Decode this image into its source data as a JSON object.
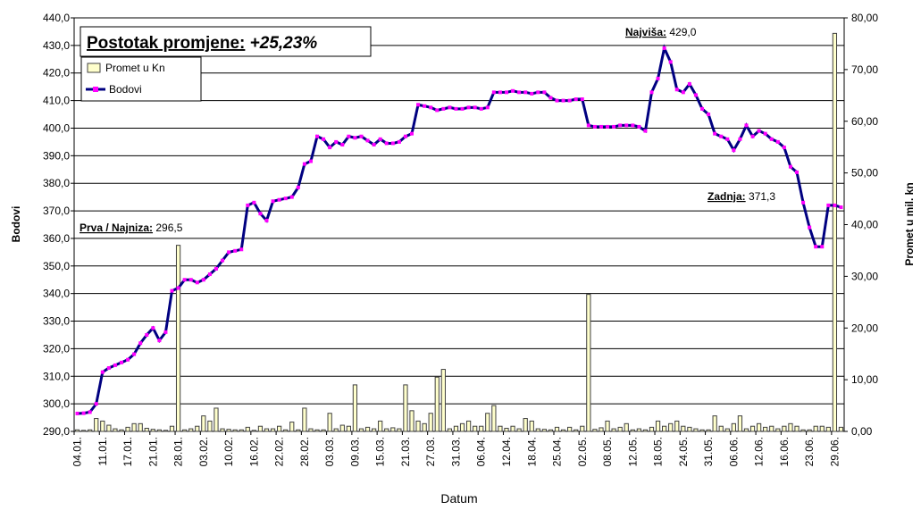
{
  "chart_data": {
    "type": "combo",
    "title": {
      "label": "Postotak promjene:",
      "value": "+25,23%"
    },
    "annotations": [
      {
        "label": "Prva / Najniza:",
        "value": "296,5"
      },
      {
        "label": "Najviša:",
        "value": "429,0"
      },
      {
        "label": "Zadnja:",
        "value": "371,3"
      }
    ],
    "y_label": "Bodovi",
    "y2_label": "Promet u mil. kn",
    "x_label": "Datum",
    "categories": [
      "04.01.",
      null,
      null,
      null,
      "11.01.",
      null,
      null,
      null,
      "17.01.",
      null,
      null,
      null,
      "21.01.",
      null,
      null,
      null,
      "28.01.",
      null,
      null,
      null,
      "03.02.",
      null,
      null,
      null,
      "10.02.",
      null,
      null,
      null,
      "16.02.",
      null,
      null,
      null,
      "22.02.",
      null,
      null,
      null,
      "28.02.",
      null,
      null,
      null,
      "03.03.",
      null,
      null,
      null,
      "09.03.",
      null,
      null,
      null,
      "15.03.",
      null,
      null,
      null,
      "21.03.",
      null,
      null,
      null,
      "27.03.",
      null,
      null,
      null,
      "31.03.",
      null,
      null,
      null,
      "06.04.",
      null,
      null,
      null,
      "12.04.",
      null,
      null,
      null,
      "18.04.",
      null,
      null,
      null,
      "25.04.",
      null,
      null,
      null,
      "02.05.",
      null,
      null,
      null,
      "08.05.",
      null,
      null,
      null,
      "12.05.",
      null,
      null,
      null,
      "18.05.",
      null,
      null,
      null,
      "24.05.",
      null,
      null,
      null,
      "31.05.",
      null,
      null,
      null,
      "06.06.",
      null,
      null,
      null,
      "12.06.",
      null,
      null,
      null,
      "16.06.",
      null,
      null,
      null,
      "23.06.",
      null,
      null,
      null,
      "29.06.",
      null
    ],
    "series": [
      {
        "name": "Promet u Kn",
        "type": "bar",
        "axis": "y2",
        "color": "#ffffcc",
        "edge_color": "#404040",
        "values": [
          0.3,
          0.2,
          0.3,
          2.5,
          2,
          1.2,
          0.5,
          0.3,
          0.8,
          1.5,
          1.5,
          0.6,
          0.4,
          0.3,
          0.2,
          1,
          36,
          0.3,
          0.5,
          1,
          3,
          2,
          4.5,
          0.5,
          0.4,
          0.3,
          0.3,
          0.8,
          0.2,
          1,
          0.5,
          0.5,
          1,
          0.3,
          1.8,
          0.3,
          4.5,
          0.5,
          0.3,
          0.3,
          3.5,
          0.5,
          1.2,
          1,
          9,
          0.5,
          0.8,
          0.5,
          2,
          0.5,
          0.7,
          0.5,
          9,
          4,
          2,
          1.5,
          3.5,
          10.5,
          12,
          0.5,
          1,
          1.5,
          2,
          1,
          1,
          3.5,
          5,
          1,
          0.6,
          1,
          0.5,
          2.5,
          2,
          0.5,
          0.4,
          0.3,
          0.8,
          0.3,
          0.8,
          0.3,
          1,
          26.5,
          0.4,
          0.7,
          2,
          0.5,
          0.8,
          1.5,
          0.3,
          0.5,
          0.3,
          0.8,
          2,
          1,
          1.5,
          2,
          1,
          0.8,
          0.5,
          0.3,
          0.3,
          3,
          1,
          0.5,
          1.5,
          3,
          0.5,
          1,
          1.5,
          0.8,
          1,
          0.5,
          1,
          1.5,
          1,
          0.3,
          0.3,
          1,
          1,
          0.8,
          77,
          0.8
        ]
      },
      {
        "name": "Bodovi",
        "type": "line",
        "axis": "y",
        "color": "#000080",
        "marker_color": "#ff00ff",
        "values": [
          296.5,
          296.6,
          297,
          300,
          311.5,
          313,
          314,
          315,
          316,
          318,
          322,
          325,
          327.5,
          323,
          326,
          341,
          342,
          345,
          345,
          344,
          345,
          347,
          349,
          352,
          355,
          355.5,
          356,
          372,
          373,
          369,
          366.5,
          373.5,
          374,
          374.5,
          375,
          378.5,
          387,
          388,
          397,
          396,
          393,
          395,
          394,
          397,
          396.5,
          397,
          395.5,
          394,
          396,
          394.5,
          394.5,
          395,
          397,
          398,
          408.5,
          408,
          407.5,
          406.5,
          407,
          407.5,
          407,
          407,
          407.5,
          407.5,
          407,
          407.5,
          413,
          413,
          413,
          413.5,
          413,
          413,
          412.5,
          413,
          413,
          411,
          410,
          410,
          410,
          410.5,
          410.5,
          401,
          400.5,
          400.5,
          400.5,
          400.5,
          401,
          401,
          401,
          400.5,
          399,
          413,
          418,
          429,
          424,
          414,
          413,
          416,
          412,
          407,
          405,
          398,
          397,
          396,
          392,
          396,
          401,
          397,
          399,
          398,
          396,
          395,
          393,
          386,
          384,
          373,
          364,
          357,
          357,
          372,
          372,
          371.3
        ]
      }
    ],
    "ylim": [
      290,
      440
    ],
    "yticks": [
      {
        "value": 290,
        "label": "290,0"
      },
      {
        "value": 300,
        "label": "300,0"
      },
      {
        "value": 310,
        "label": "310,0"
      },
      {
        "value": 320,
        "label": "320,0"
      },
      {
        "value": 330,
        "label": "330,0"
      },
      {
        "value": 340,
        "label": "340,0"
      },
      {
        "value": 350,
        "label": "350,0"
      },
      {
        "value": 360,
        "label": "360,0"
      },
      {
        "value": 370,
        "label": "370,0"
      },
      {
        "value": 380,
        "label": "380,0"
      },
      {
        "value": 390,
        "label": "390,0"
      },
      {
        "value": 400,
        "label": "400,0"
      },
      {
        "value": 410,
        "label": "410,0"
      },
      {
        "value": 420,
        "label": "420,0"
      },
      {
        "value": 430,
        "label": "430,0"
      },
      {
        "value": 440,
        "label": "440,0"
      }
    ],
    "y2lim": [
      0,
      80
    ],
    "y2ticks": [
      {
        "value": 0,
        "label": "0,00"
      },
      {
        "value": 10,
        "label": "10,00"
      },
      {
        "value": 20,
        "label": "20,00"
      },
      {
        "value": 30,
        "label": "30,00"
      },
      {
        "value": 40,
        "label": "40,00"
      },
      {
        "value": 50,
        "label": "50,00"
      },
      {
        "value": 60,
        "label": "60,00"
      },
      {
        "value": 70,
        "label": "70,00"
      },
      {
        "value": 80,
        "label": "80,00"
      }
    ],
    "grid": true
  }
}
